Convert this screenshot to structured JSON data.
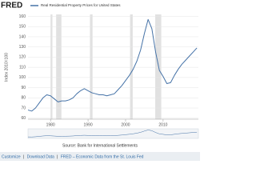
{
  "logo": "FRED",
  "chart_data": {
    "type": "line",
    "y_label": "Index 2010=100",
    "x": [
      1974,
      1975,
      1976,
      1977,
      1978,
      1979,
      1980,
      1981,
      1982,
      1983,
      1984,
      1985,
      1986,
      1987,
      1988,
      1989,
      1990,
      1991,
      1992,
      1993,
      1994,
      1995,
      1996,
      1997,
      1998,
      1999,
      2000,
      2001,
      2002,
      2003,
      2004,
      2005,
      2006,
      2007,
      2008,
      2009,
      2010,
      2011,
      2012,
      2013,
      2014,
      2015,
      2016,
      2017,
      2018,
      2019
    ],
    "series": [
      {
        "name": "Real Residential Property Prices for United States",
        "color": "#4572a7",
        "values": [
          68,
          67,
          70,
          75,
          80,
          83,
          82,
          79,
          76,
          77,
          77,
          78,
          80,
          84,
          87,
          89,
          87,
          85,
          84,
          83,
          83,
          82,
          83,
          84,
          88,
          92,
          97,
          102,
          108,
          116,
          127,
          143,
          157,
          148,
          125,
          107,
          101,
          94,
          95,
          102,
          108,
          113,
          117,
          121,
          125,
          129
        ]
      }
    ],
    "recessions": [
      [
        1980.0,
        1980.5
      ],
      [
        1981.5,
        1982.9
      ],
      [
        1990.5,
        1991.2
      ],
      [
        2001.2,
        2001.9
      ],
      [
        2007.9,
        2009.5
      ]
    ],
    "xlim": [
      1974,
      2019.4
    ],
    "xticks": [
      1980,
      1990,
      2000,
      2010
    ],
    "ylim": [
      59,
      162
    ],
    "yticks": [
      60,
      70,
      80,
      90,
      100,
      110,
      120,
      130,
      140,
      150,
      160
    ],
    "grid": true,
    "source": "Source: Bank for International Settlements"
  },
  "footer": {
    "links": [
      "Customize",
      "Download Data",
      "FRED – Economic Data from the St. Louis Fed"
    ],
    "separator": "|"
  }
}
